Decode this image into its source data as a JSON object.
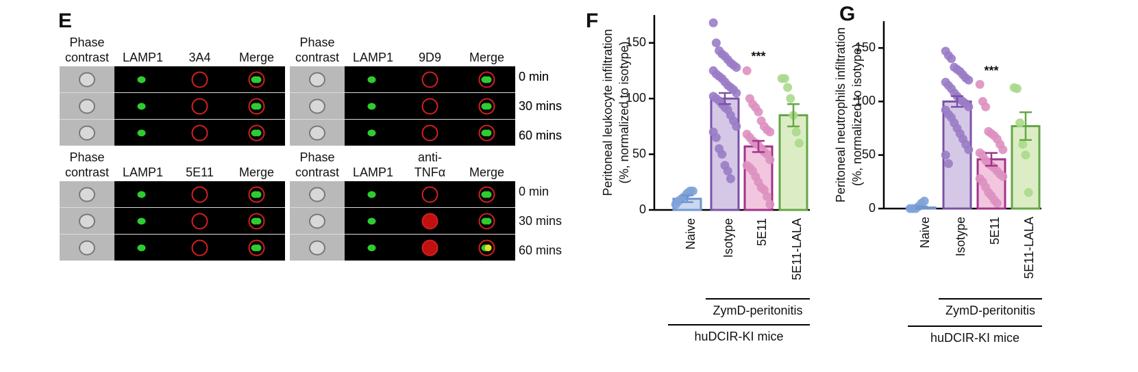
{
  "panel_e": {
    "label": "E",
    "blocks": [
      {
        "headers": [
          [
            "Phase",
            "contrast"
          ],
          [
            "LAMP1"
          ],
          [
            "3A4"
          ],
          [
            "Merge"
          ]
        ],
        "times": [
          "0 min",
          "30 mins",
          "60 mins"
        ]
      },
      {
        "headers": [
          [
            "Phase",
            "contrast"
          ],
          [
            "LAMP1"
          ],
          [
            "9D9"
          ],
          [
            "Merge"
          ]
        ],
        "times": [
          "0 min",
          "30 mins",
          "60 mins"
        ]
      },
      {
        "headers": [
          [
            "Phase",
            "contrast"
          ],
          [
            "LAMP1"
          ],
          [
            "5E11"
          ],
          [
            "Merge"
          ]
        ]
      },
      {
        "headers": [
          [
            "Phase",
            "contrast"
          ],
          [
            "LAMP1"
          ],
          [
            "anti-",
            "TNFα"
          ],
          [
            "Merge"
          ]
        ],
        "times": [
          "0 min",
          "30 mins",
          "60 mins"
        ]
      }
    ]
  },
  "chart_data": [
    {
      "type": "bar",
      "label": "F",
      "ylabel": [
        "Peritoneal leukocyte infiltration",
        "(%, normalized to isotype)"
      ],
      "categories": [
        "Naive",
        "Isotype",
        "5E11",
        "5E11-LALA"
      ],
      "values": [
        10,
        100,
        57,
        85
      ],
      "errors": [
        3,
        5,
        5,
        10
      ],
      "points": [
        [
          5,
          8,
          10,
          12,
          15,
          17,
          17
        ],
        [
          168,
          150,
          143,
          140,
          138,
          135,
          132,
          130,
          128,
          125,
          122,
          120,
          118,
          115,
          112,
          110,
          108,
          105,
          102,
          100,
          98,
          95,
          92,
          90,
          85,
          80,
          75,
          70,
          65,
          55,
          50,
          40,
          35,
          28
        ],
        [
          125,
          100,
          95,
          92,
          88,
          80,
          75,
          72,
          70,
          68,
          65,
          62,
          60,
          58,
          55,
          52,
          50,
          45,
          40,
          38,
          35,
          30,
          25,
          20,
          18,
          12,
          5
        ],
        [
          118,
          118,
          110,
          100,
          85,
          70,
          60
        ]
      ],
      "edge_colors": [
        "#6f95cf",
        "#7a52a6",
        "#a3338a",
        "#65a647"
      ],
      "fill_colors": [
        "#c9d8ef",
        "#d5c8e6",
        "#f2c6df",
        "#dcedc6"
      ],
      "point_colors": [
        "#7ea2d8",
        "#9a7cc6",
        "#dd90c0",
        "#a9d98a"
      ],
      "ylim": [
        0,
        175
      ],
      "yticks": [
        0,
        50,
        100,
        150
      ],
      "annotation": {
        "text": "***",
        "category": "5E11"
      },
      "groups": [
        {
          "label": "ZymD-peritonitis",
          "from": "Isotype",
          "to": "5E11-LALA"
        },
        {
          "label": "huDCIR-KI mice",
          "from": "Naive",
          "to": "5E11-LALA"
        }
      ]
    },
    {
      "type": "bar",
      "label": "G",
      "ylabel": [
        "Peritoneal neutrophils infiltration",
        "(%, normalized to isotype)"
      ],
      "categories": [
        "Naive",
        "Isotype",
        "5E11",
        "5E11-LALA"
      ],
      "values": [
        1,
        100,
        46,
        77
      ],
      "errors": [
        1,
        5,
        6,
        13
      ],
      "points": [
        [
          0,
          0,
          0,
          2,
          5,
          7
        ],
        [
          147,
          143,
          140,
          132,
          130,
          128,
          125,
          122,
          120,
          118,
          115,
          112,
          108,
          105,
          102,
          100,
          98,
          95,
          92,
          88,
          85,
          80,
          75,
          70,
          65,
          60,
          55,
          50,
          42
        ],
        [
          116,
          100,
          95,
          72,
          70,
          68,
          65,
          60,
          55,
          52,
          50,
          45,
          42,
          40,
          38,
          35,
          32,
          30,
          28,
          25,
          20,
          15,
          12,
          8,
          5
        ],
        [
          113,
          112,
          80,
          60,
          50,
          15
        ]
      ],
      "edge_colors": [
        "#6f95cf",
        "#7a52a6",
        "#a3338a",
        "#65a647"
      ],
      "fill_colors": [
        "#c9d8ef",
        "#d5c8e6",
        "#f2c6df",
        "#dcedc6"
      ],
      "point_colors": [
        "#7ea2d8",
        "#9a7cc6",
        "#dd90c0",
        "#a9d98a"
      ],
      "ylim": [
        0,
        175
      ],
      "yticks": [
        0,
        50,
        100,
        150
      ],
      "annotation": {
        "text": "***",
        "category": "5E11"
      },
      "groups": [
        {
          "label": "ZymD-peritonitis",
          "from": "Isotype",
          "to": "5E11-LALA"
        },
        {
          "label": "huDCIR-KI mice",
          "from": "Naive",
          "to": "5E11-LALA"
        }
      ]
    }
  ]
}
